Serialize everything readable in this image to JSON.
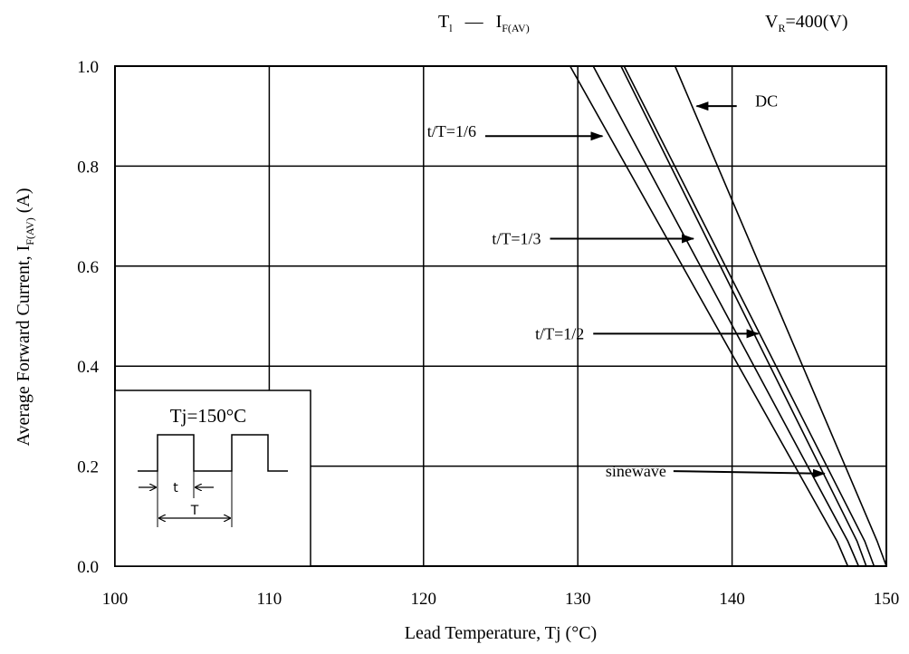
{
  "chart_data": {
    "type": "line",
    "title_parts": {
      "tl_main": "T",
      "tl_sub": "l",
      "dash": "—",
      "i_main": "I",
      "i_sub": "F(AV)",
      "vr_main": "V",
      "vr_sub": "R",
      "vr_value": "=400(V)"
    },
    "xlabel": "Lead Temperature, Tj (°C)",
    "ylabel_parts": {
      "main": "Average Forward Current, I",
      "sub": "F(AV)",
      "unit": " (A)"
    },
    "xlim": [
      100,
      150
    ],
    "ylim": [
      0,
      1.0
    ],
    "x_ticks": [
      "100",
      "110",
      "120",
      "130",
      "140",
      "150"
    ],
    "y_ticks": [
      "0.0",
      "0.2",
      "0.4",
      "0.6",
      "0.8",
      "1.0"
    ],
    "grid": true,
    "series": [
      {
        "name": "sinewave",
        "x": [
          129.5,
          146.8,
          147.5
        ],
        "y": [
          1.0,
          0.05,
          0.0
        ]
      },
      {
        "name": "t/T=1/6",
        "x": [
          131.0,
          147.5,
          148.2
        ],
        "y": [
          1.0,
          0.05,
          0.0
        ]
      },
      {
        "name": "t/T=1/3",
        "x": [
          132.8,
          148.1,
          148.7
        ],
        "y": [
          1.0,
          0.05,
          0.0
        ]
      },
      {
        "name": "t/T=1/2",
        "x": [
          133.0,
          148.6,
          149.2
        ],
        "y": [
          1.0,
          0.05,
          0.0
        ]
      },
      {
        "name": "DC",
        "x": [
          136.3,
          149.4,
          150.0
        ],
        "y": [
          1.0,
          0.05,
          0.0
        ]
      }
    ],
    "annotations": [
      {
        "text": "DC",
        "text_x": 141.5,
        "text_y": 0.93,
        "arrow_from": [
          140.3,
          0.92
        ],
        "arrow_to": [
          137.7,
          0.92
        ]
      },
      {
        "text": "t/T=1/6",
        "text_x": 130.0,
        "text_y": 0.87,
        "arrow_from": [
          124.0,
          0.86
        ],
        "arrow_to": [
          131.6,
          0.86
        ]
      },
      {
        "text": "t/T=1/3",
        "text_x": 134.5,
        "text_y": 0.655,
        "arrow_from": [
          128.2,
          0.655
        ],
        "arrow_to": [
          137.5,
          0.655
        ]
      },
      {
        "text": "t/T=1/2",
        "text_x": 138.3,
        "text_y": 0.465,
        "arrow_from": [
          131.0,
          0.465
        ],
        "arrow_to": [
          141.7,
          0.465
        ]
      },
      {
        "text": "sinewave",
        "text_x": 144.1,
        "text_y": 0.19,
        "arrow_from": [
          136.2,
          0.19
        ],
        "arrow_to": [
          146.0,
          0.185
        ]
      }
    ],
    "inset": {
      "title": "Tj=150°C",
      "t_label": "t",
      "T_label": "T"
    }
  }
}
